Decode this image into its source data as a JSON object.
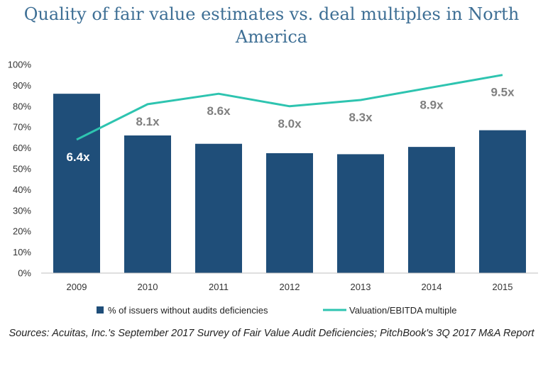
{
  "chart_data": {
    "type": "bar",
    "title": "Quality of fair value estimates vs. deal multiples in North America",
    "categories": [
      "2009",
      "2010",
      "2011",
      "2012",
      "2013",
      "2014",
      "2015"
    ],
    "series": [
      {
        "name": "% of issuers without audits deficiencies",
        "type": "bar",
        "values": [
          0.86,
          0.66,
          0.62,
          0.575,
          0.57,
          0.605,
          0.685
        ],
        "color": "#1f4e79"
      },
      {
        "name": "Valuation/EBITDA multiple",
        "type": "line",
        "values": [
          6.4,
          8.1,
          8.6,
          8.0,
          8.3,
          8.9,
          9.5
        ],
        "labels": [
          "6.4x",
          "8.1x",
          "8.6x",
          "8.0x",
          "8.3x",
          "8.9x",
          "9.5x"
        ],
        "color": "#2ec4b0"
      }
    ],
    "y_ticks": [
      "0%",
      "10%",
      "20%",
      "30%",
      "40%",
      "50%",
      "60%",
      "70%",
      "80%",
      "90%",
      "100%"
    ],
    "ylim": [
      0,
      1
    ],
    "line_scale": [
      0,
      10
    ],
    "grid": false,
    "legend_position": "bottom"
  },
  "source": "Sources: Acuitas, Inc.'s September 2017 Survey of Fair Value Audit Deficiencies; PitchBook's 3Q 2017 M&A Report",
  "colors": {
    "bar": "#1f4e79",
    "line": "#2ec4b0",
    "label_on_bar": "#ffffff",
    "label_default": "#7f7f7f",
    "title": "#3e6f95"
  }
}
